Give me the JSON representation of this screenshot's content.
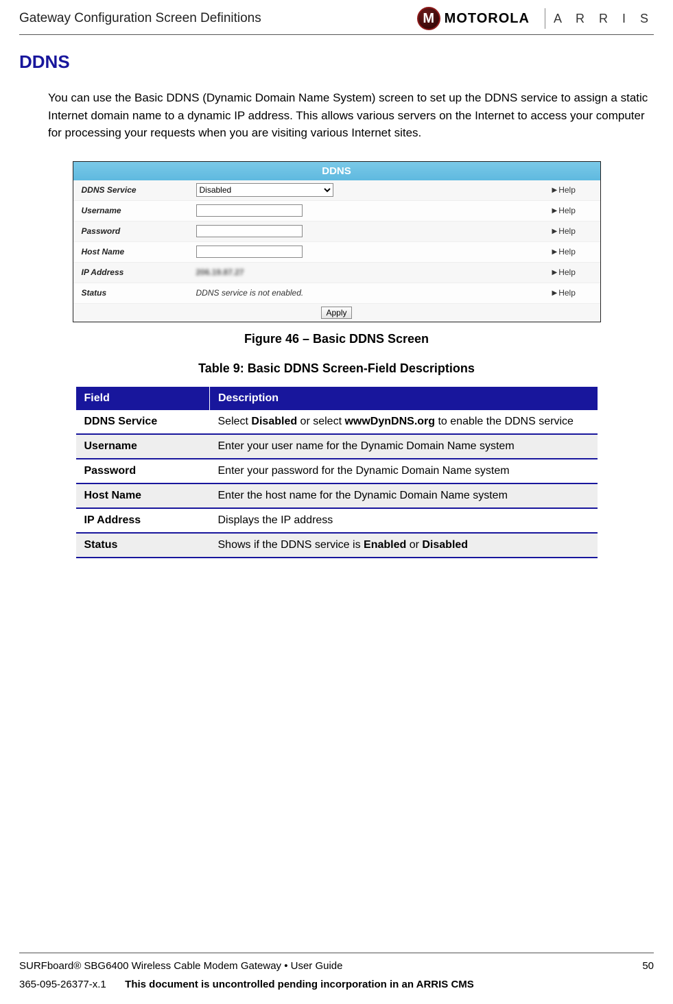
{
  "header": {
    "title": "Gateway Configuration Screen Definitions",
    "logo_motorola": "MOTOROLA",
    "logo_arris": "A R R I S"
  },
  "section": {
    "title": "DDNS",
    "intro": "You can use the Basic DDNS (Dynamic Domain Name System) screen to set up the DDNS service to assign a static Internet domain name to a dynamic IP address. This allows various servers on the Internet to access your computer for processing your requests when you are visiting various Internet sites."
  },
  "screenshot": {
    "panel_title": "DDNS",
    "rows": {
      "ddns_service": {
        "label": "DDNS Service",
        "select_value": "Disabled",
        "help": "Help"
      },
      "username": {
        "label": "Username",
        "value": "",
        "help": "Help"
      },
      "password": {
        "label": "Password",
        "value": "",
        "help": "Help"
      },
      "host_name": {
        "label": "Host Name",
        "value": "",
        "help": "Help"
      },
      "ip_address": {
        "label": "IP Address",
        "value": "206.19.87.27",
        "help": "Help"
      },
      "status": {
        "label": "Status",
        "value": "DDNS service is not enabled.",
        "help": "Help"
      }
    },
    "apply_button": "Apply"
  },
  "figure_caption": "Figure 46 – Basic DDNS Screen",
  "table_caption": "Table 9: Basic DDNS Screen-Field Descriptions",
  "desc_table": {
    "header_field": "Field",
    "header_desc": "Description",
    "rows": [
      {
        "field": "DDNS Service",
        "desc_pre": "Select ",
        "b1": "Disabled",
        "mid": " or select ",
        "b2": "wwwDynDNS.org",
        "desc_post": " to enable the DDNS service"
      },
      {
        "field": "Username",
        "desc": "Enter your user name for the Dynamic Domain Name system"
      },
      {
        "field": "Password",
        "desc": "Enter your password for the Dynamic Domain Name system"
      },
      {
        "field": "Host Name",
        "desc": "Enter the host name for the Dynamic Domain Name system"
      },
      {
        "field": "IP Address",
        "desc": "Displays the IP address"
      },
      {
        "field": "Status",
        "desc_pre": "Shows if the DDNS service is ",
        "b1": "Enabled",
        "mid": " or ",
        "b2": "Disabled",
        "desc_post": ""
      }
    ]
  },
  "footer": {
    "product": "SURFboard® SBG6400 Wireless Cable Modem Gateway • User Guide",
    "page_number": "50",
    "doc_id": "365-095-26377-x.1",
    "notice": "This document is uncontrolled pending incorporation in an ARRIS CMS"
  }
}
